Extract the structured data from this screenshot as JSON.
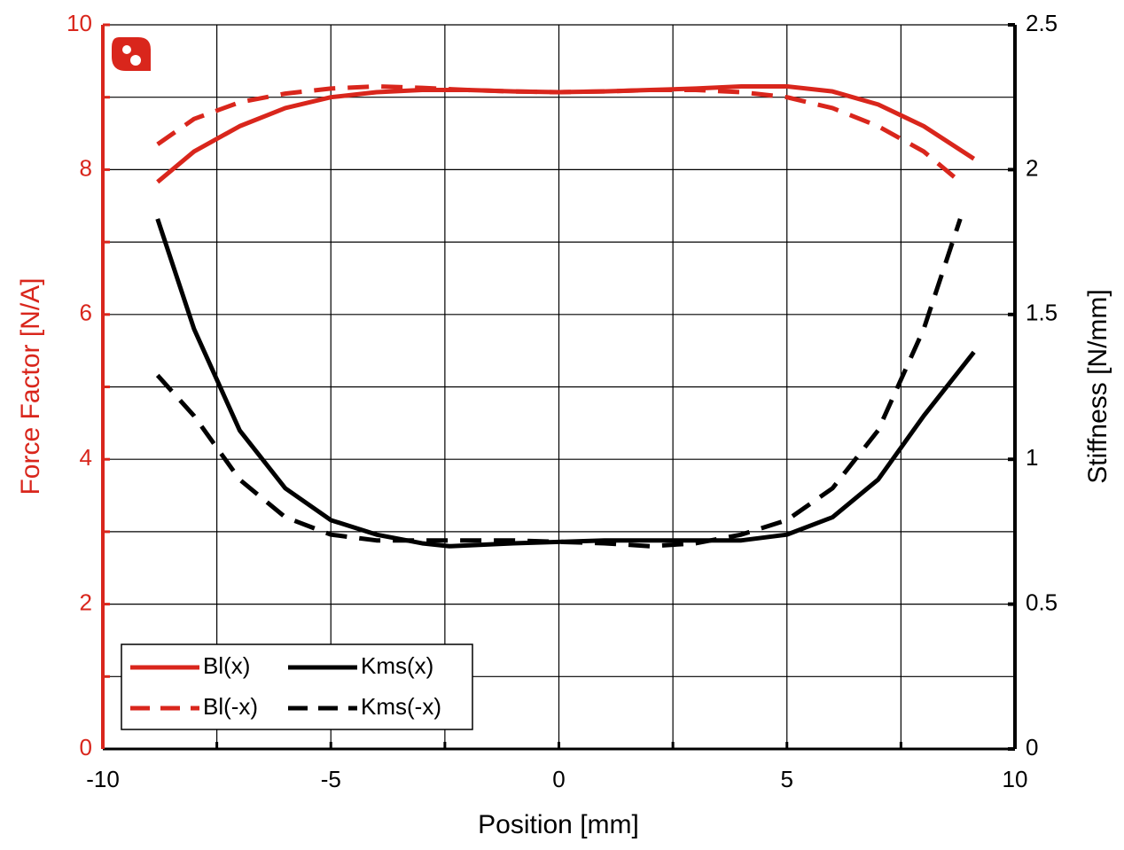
{
  "chart_data": {
    "type": "line",
    "xlabel": "Position [mm]",
    "ylabel": "Force Factor [N/A]",
    "y2label": "Stiffness [N/mm]",
    "xlim": [
      -10,
      10
    ],
    "xticks": [
      -10,
      -5,
      0,
      5,
      10
    ],
    "xminorticks": [
      -7.5,
      -2.5,
      2.5,
      7.5
    ],
    "ylim": [
      0,
      10
    ],
    "yticks": [
      0,
      2,
      4,
      6,
      8,
      10
    ],
    "yminorticks": [
      1,
      3,
      5,
      7,
      9
    ],
    "y2lim": [
      0,
      2.5
    ],
    "y2ticks": [
      0,
      0.5,
      1,
      1.5,
      2,
      2.5
    ],
    "grid": true,
    "legend": "lower left",
    "series": [
      {
        "name": "Bl(x)",
        "color": "#d9261c",
        "dash": false,
        "axis": "y",
        "x": [
          -8.8,
          -8,
          -7,
          -6,
          -5,
          -4,
          -3,
          -2,
          -1,
          0,
          1,
          2,
          3,
          4,
          5,
          6,
          7,
          8,
          9.1
        ],
        "values": [
          7.83,
          8.25,
          8.6,
          8.85,
          9.0,
          9.07,
          9.1,
          9.1,
          9.08,
          9.07,
          9.08,
          9.1,
          9.12,
          9.15,
          9.15,
          9.08,
          8.9,
          8.6,
          8.15
        ]
      },
      {
        "name": "Bl(-x)",
        "color": "#d9261c",
        "dash": true,
        "axis": "y",
        "x": [
          -8.8,
          -8,
          -7,
          -6,
          -5,
          -4,
          -3,
          -2,
          -1,
          0,
          1,
          2,
          3,
          4,
          5,
          6,
          7,
          8,
          8.8
        ],
        "values": [
          8.35,
          8.7,
          8.93,
          9.05,
          9.12,
          9.15,
          9.13,
          9.1,
          9.08,
          9.07,
          9.08,
          9.1,
          9.1,
          9.07,
          9.0,
          8.85,
          8.6,
          8.25,
          7.83
        ]
      },
      {
        "name": "Kms(x)",
        "color": "#000000",
        "dash": false,
        "axis": "y2",
        "x": [
          -8.8,
          -8,
          -7,
          -6,
          -5,
          -4,
          -3,
          -2.4,
          -1,
          0,
          1,
          2,
          3,
          4,
          5,
          6,
          7,
          8,
          9.1
        ],
        "values": [
          1.83,
          1.45,
          1.1,
          0.9,
          0.79,
          0.74,
          0.71,
          0.7,
          0.71,
          0.715,
          0.72,
          0.72,
          0.72,
          0.72,
          0.74,
          0.8,
          0.93,
          1.15,
          1.37
        ]
      },
      {
        "name": "Kms(-x)",
        "color": "#000000",
        "dash": true,
        "axis": "y2",
        "x": [
          -8.8,
          -8,
          -7,
          -6,
          -5,
          -4,
          -3,
          -2,
          -1,
          0,
          1,
          2,
          3,
          4,
          5,
          6,
          7,
          8,
          8.8
        ],
        "values": [
          1.29,
          1.15,
          0.93,
          0.8,
          0.74,
          0.72,
          0.72,
          0.72,
          0.72,
          0.715,
          0.71,
          0.7,
          0.71,
          0.74,
          0.79,
          0.9,
          1.1,
          1.45,
          1.83
        ]
      }
    ]
  }
}
